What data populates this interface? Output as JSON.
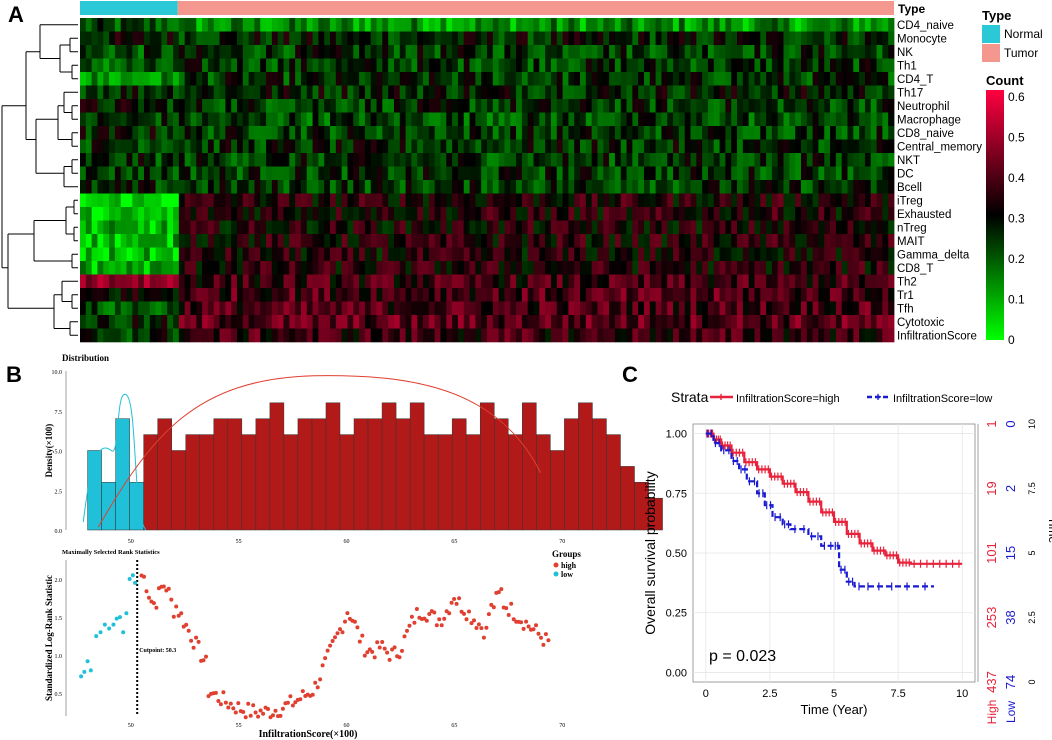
{
  "panel_labels": {
    "a": "A",
    "b": "B",
    "c": "C"
  },
  "chart_data": [
    {
      "type": "heatmap",
      "panel": "A",
      "rows": [
        "CD4_naive",
        "Monocyte",
        "NK",
        "Th1",
        "CD4_T",
        "Th17",
        "Neutrophil",
        "Macrophage",
        "CD8_naive",
        "Central_memory",
        "NKT",
        "DC",
        "Bcell",
        "iTreg",
        "Exhausted",
        "nTreg",
        "MAIT",
        "Gamma_delta",
        "CD8_T",
        "Th2",
        "Tr1",
        "Tfh",
        "Cytotoxic",
        "InfiltrationScore"
      ],
      "annotation": {
        "title": "Type",
        "groups": [
          {
            "name": "Normal",
            "color": "#2bc8d8",
            "fraction": 0.12
          },
          {
            "name": "Tumor",
            "color": "#f4978e",
            "fraction": 0.88
          }
        ]
      },
      "legend_type_title": "Type",
      "legend_count_title": "Count",
      "color_scale": {
        "min": 0,
        "max": 0.6,
        "ticks": [
          "0.6",
          "0.5",
          "0.4",
          "0.3",
          "0.2",
          "0.1",
          "0"
        ],
        "colors": [
          "#00ff00",
          "#000000",
          "#ff0040"
        ]
      }
    },
    {
      "type": "bar",
      "panel": "B-top",
      "title": "Distribution",
      "ylabel": "Density(×100)",
      "yticks": [
        "0.0",
        "2.5",
        "5.0",
        "7.5",
        "10.0"
      ],
      "ylim": [
        0,
        10
      ],
      "xticks": [
        "50",
        "55",
        "60",
        "65",
        "70"
      ],
      "xlim": [
        47,
        70.5
      ],
      "low_bins": {
        "start": 48,
        "width": 0.65,
        "values": [
          5,
          3,
          7,
          3
        ],
        "color": "#20c0d8"
      },
      "high_bins": {
        "start": 50.6,
        "width": 0.65,
        "values": [
          6,
          7,
          5,
          6,
          6,
          7,
          7,
          6,
          7,
          8,
          6,
          7,
          7,
          8,
          6,
          7,
          7,
          8,
          7,
          8,
          6,
          6,
          7,
          6,
          8,
          7,
          6,
          8,
          6,
          5,
          7,
          8,
          7,
          6,
          4,
          3,
          2
        ],
        "color": "#b21a1a"
      }
    },
    {
      "type": "scatter",
      "panel": "B-bottom",
      "title": "Maximally Selected Rank Statistics",
      "xlabel": "InfiltrationScore(×100)",
      "ylabel": "Standardized Log-Rank Statistic",
      "yticks": [
        "0.5",
        "1.0",
        "1.5",
        "2.0"
      ],
      "ylim": [
        0.2,
        2.25
      ],
      "xticks": [
        "50",
        "55",
        "60",
        "65",
        "70"
      ],
      "xlim": [
        47,
        70.5
      ],
      "cutpoint": 50.3,
      "cutpoint_label": "Cutpoint: 50.3",
      "legend_title": "Groups",
      "groups": [
        {
          "name": "high",
          "color": "#e04030"
        },
        {
          "name": "low",
          "color": "#20c0d8"
        }
      ]
    },
    {
      "type": "line",
      "panel": "C",
      "subtype": "kaplan-meier",
      "strata_label": "Strata",
      "series": [
        {
          "name": "InfiltrationScore=high",
          "color": "#e8223a",
          "x": [
            0,
            0.3,
            0.6,
            1,
            1.5,
            2,
            2.5,
            3,
            3.5,
            4,
            4.5,
            5,
            5.5,
            6,
            6.5,
            7,
            7.5,
            8,
            9,
            10
          ],
          "y": [
            1,
            0.975,
            0.95,
            0.92,
            0.88,
            0.85,
            0.82,
            0.79,
            0.755,
            0.715,
            0.67,
            0.63,
            0.58,
            0.54,
            0.51,
            0.49,
            0.46,
            0.455,
            0.455,
            0.455
          ]
        },
        {
          "name": "InfiltrationScore=low",
          "color": "#1a1ad0",
          "x": [
            0,
            0.3,
            0.6,
            1,
            1.3,
            1.6,
            2,
            2.3,
            2.6,
            3,
            3.3,
            4,
            4.5,
            5,
            5.2,
            5.5,
            5.8,
            6.5,
            7.5,
            8.9
          ],
          "y": [
            1,
            0.96,
            0.93,
            0.885,
            0.85,
            0.8,
            0.75,
            0.7,
            0.65,
            0.62,
            0.6,
            0.57,
            0.53,
            0.53,
            0.43,
            0.38,
            0.36,
            0.36,
            0.36,
            0.36
          ]
        }
      ],
      "ylabel": "Overall survival probability",
      "xlabel": "Time (Year)",
      "yticks": [
        "0.00",
        "0.25",
        "0.50",
        "0.75",
        "1.00"
      ],
      "xticks": [
        "0",
        "2.5",
        "5",
        "7.5",
        "10"
      ],
      "xlim": [
        -0.5,
        10.5
      ],
      "ylim": [
        -0.04,
        1.04
      ],
      "pvalue_text": "p = 0.023",
      "risk_table": {
        "title": "Time",
        "times": [
          "0",
          "2.5",
          "5",
          "7.5",
          "10"
        ],
        "high_label": "High",
        "low_label": "Low",
        "high_counts": [
          "437",
          "253",
          "101",
          "19",
          "1"
        ],
        "low_counts": [
          "74",
          "38",
          "15",
          "2",
          "0"
        ]
      }
    }
  ]
}
